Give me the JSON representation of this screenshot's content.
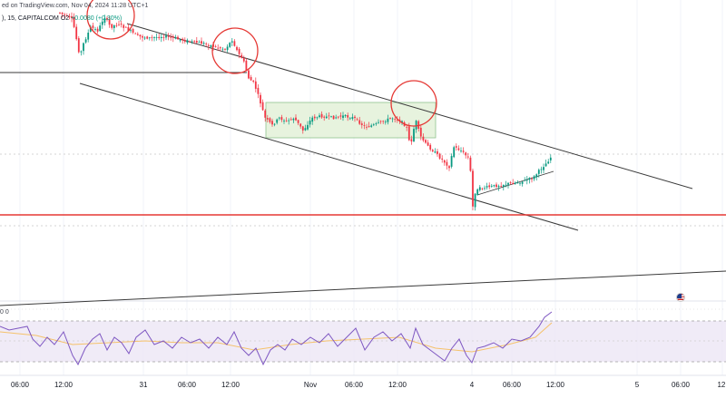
{
  "header": {
    "published": "ed on TradingView.com, Nov 04, 2024 11:28 UTC+1"
  },
  "legend": {
    "symbol": "), 15, CAPITALCOM  O2",
    "change": "+0.0080 (+0.30%)"
  },
  "rsi": {
    "readout": "0 0"
  },
  "colors": {
    "up": "#089981",
    "down": "#f23645",
    "support": "#e53935",
    "channel": "#3a3a3a",
    "box_fill": "#e3f2d9",
    "box_border": "#7cb87a",
    "rsi_line": "#7e57c2",
    "rsi_ma": "#f5c26b",
    "rsi_band": "#ede7f6"
  },
  "icons": {
    "flag": "us-flag-icon"
  },
  "chart_data": {
    "type": "candlestick",
    "title": "",
    "xlabel": "",
    "ylabel": "",
    "x_ticks": [
      {
        "label": "06:00",
        "pos": 22
      },
      {
        "label": "12:00",
        "pos": 70
      },
      {
        "label": "31",
        "pos": 158
      },
      {
        "label": "06:00",
        "pos": 206
      },
      {
        "label": "12:00",
        "pos": 254
      },
      {
        "label": "Nov",
        "pos": 342
      },
      {
        "label": "06:00",
        "pos": 390
      },
      {
        "label": "12:00",
        "pos": 438
      },
      {
        "label": "4",
        "pos": 520
      },
      {
        "label": "06:00",
        "pos": 564
      },
      {
        "label": "12:00",
        "pos": 612
      },
      {
        "label": "5",
        "pos": 702
      },
      {
        "label": "06:00",
        "pos": 750
      },
      {
        "label": "12:",
        "pos": 796
      }
    ],
    "price_path": [
      [
        66,
        14
      ],
      [
        80,
        22
      ],
      [
        88,
        62
      ],
      [
        92,
        48
      ],
      [
        100,
        30
      ],
      [
        108,
        34
      ],
      [
        115,
        18
      ],
      [
        122,
        30
      ],
      [
        130,
        26
      ],
      [
        140,
        32
      ],
      [
        152,
        40
      ],
      [
        165,
        42
      ],
      [
        180,
        40
      ],
      [
        195,
        43
      ],
      [
        210,
        46
      ],
      [
        225,
        48
      ],
      [
        238,
        52
      ],
      [
        248,
        54
      ],
      [
        256,
        44
      ],
      [
        262,
        58
      ],
      [
        268,
        66
      ],
      [
        274,
        86
      ],
      [
        280,
        92
      ],
      [
        286,
        110
      ],
      [
        292,
        130
      ],
      [
        300,
        138
      ],
      [
        308,
        130
      ],
      [
        316,
        134
      ],
      [
        324,
        130
      ],
      [
        334,
        144
      ],
      [
        344,
        130
      ],
      [
        355,
        128
      ],
      [
        366,
        130
      ],
      [
        378,
        128
      ],
      [
        390,
        130
      ],
      [
        402,
        140
      ],
      [
        412,
        138
      ],
      [
        422,
        134
      ],
      [
        432,
        130
      ],
      [
        440,
        132
      ],
      [
        448,
        140
      ],
      [
        452,
        162
      ],
      [
        458,
        132
      ],
      [
        463,
        150
      ],
      [
        470,
        160
      ],
      [
        477,
        166
      ],
      [
        483,
        172
      ],
      [
        489,
        178
      ],
      [
        495,
        184
      ],
      [
        500,
        162
      ],
      [
        508,
        166
      ],
      [
        514,
        172
      ],
      [
        518,
        176
      ],
      [
        520,
        242
      ],
      [
        522,
        214
      ],
      [
        528,
        208
      ],
      [
        540,
        206
      ],
      [
        552,
        204
      ],
      [
        564,
        202
      ],
      [
        576,
        200
      ],
      [
        588,
        196
      ],
      [
        596,
        186
      ],
      [
        602,
        180
      ],
      [
        608,
        172
      ]
    ],
    "rsi_path": [
      [
        0,
        360
      ],
      [
        10,
        364
      ],
      [
        20,
        362
      ],
      [
        30,
        360
      ],
      [
        36,
        374
      ],
      [
        44,
        382
      ],
      [
        52,
        372
      ],
      [
        60,
        380
      ],
      [
        70,
        366
      ],
      [
        80,
        392
      ],
      [
        86,
        402
      ],
      [
        94,
        384
      ],
      [
        102,
        374
      ],
      [
        110,
        368
      ],
      [
        118,
        386
      ],
      [
        126,
        372
      ],
      [
        134,
        378
      ],
      [
        142,
        390
      ],
      [
        150,
        372
      ],
      [
        160,
        364
      ],
      [
        170,
        380
      ],
      [
        180,
        376
      ],
      [
        190,
        384
      ],
      [
        200,
        372
      ],
      [
        210,
        378
      ],
      [
        220,
        374
      ],
      [
        230,
        384
      ],
      [
        240,
        372
      ],
      [
        250,
        380
      ],
      [
        258,
        366
      ],
      [
        266,
        384
      ],
      [
        274,
        392
      ],
      [
        282,
        384
      ],
      [
        290,
        402
      ],
      [
        298,
        386
      ],
      [
        306,
        380
      ],
      [
        314,
        386
      ],
      [
        322,
        374
      ],
      [
        332,
        380
      ],
      [
        342,
        372
      ],
      [
        352,
        378
      ],
      [
        362,
        368
      ],
      [
        372,
        382
      ],
      [
        382,
        372
      ],
      [
        392,
        362
      ],
      [
        402,
        386
      ],
      [
        412,
        372
      ],
      [
        422,
        366
      ],
      [
        432,
        376
      ],
      [
        442,
        368
      ],
      [
        452,
        384
      ],
      [
        458,
        362
      ],
      [
        466,
        380
      ],
      [
        474,
        386
      ],
      [
        482,
        392
      ],
      [
        490,
        398
      ],
      [
        498,
        384
      ],
      [
        506,
        374
      ],
      [
        514,
        392
      ],
      [
        520,
        400
      ],
      [
        526,
        384
      ],
      [
        534,
        382
      ],
      [
        544,
        378
      ],
      [
        554,
        384
      ],
      [
        564,
        374
      ],
      [
        574,
        376
      ],
      [
        584,
        372
      ],
      [
        594,
        360
      ],
      [
        600,
        350
      ],
      [
        608,
        344
      ]
    ],
    "rsi_ma_path": [
      [
        0,
        366
      ],
      [
        40,
        370
      ],
      [
        80,
        380
      ],
      [
        120,
        378
      ],
      [
        160,
        376
      ],
      [
        200,
        378
      ],
      [
        240,
        378
      ],
      [
        280,
        386
      ],
      [
        320,
        380
      ],
      [
        360,
        376
      ],
      [
        400,
        374
      ],
      [
        440,
        372
      ],
      [
        480,
        384
      ],
      [
        520,
        388
      ],
      [
        560,
        380
      ],
      [
        590,
        372
      ],
      [
        608,
        356
      ]
    ]
  }
}
